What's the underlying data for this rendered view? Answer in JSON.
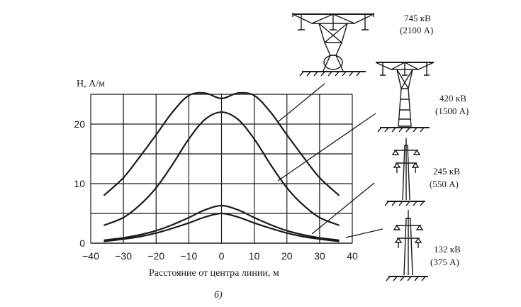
{
  "chart_data": {
    "type": "line",
    "ylabel": "H, А/м",
    "xlabel": "Расстояние от центра линии, м",
    "caption": "б)",
    "xlim": [
      -40,
      40
    ],
    "ylim": [
      0,
      25
    ],
    "grid": true,
    "x_ticks": [
      "−40",
      "−30",
      "−20",
      "−10",
      "0",
      "10",
      "20",
      "30",
      "40"
    ],
    "y_ticks": [
      "0",
      "10",
      "20"
    ],
    "series": [
      {
        "x": [
          -36,
          -30,
          -25,
          -20,
          -15,
          -10,
          -5,
          0,
          5,
          10,
          15,
          20,
          25,
          30,
          36
        ],
        "y": [
          8,
          11,
          14.5,
          18.2,
          22,
          24.8,
          25.2,
          24.3,
          25.2,
          24.8,
          22,
          18.2,
          14.5,
          11,
          8
        ]
      },
      {
        "x": [
          -36,
          -30,
          -25,
          -20,
          -15,
          -10,
          -5,
          0,
          5,
          10,
          15,
          20,
          25,
          30,
          36
        ],
        "y": [
          3,
          4.3,
          6.4,
          9.3,
          13.2,
          17.5,
          20.8,
          22,
          20.8,
          17.5,
          13.2,
          9.3,
          6.4,
          4.3,
          3
        ]
      },
      {
        "x": [
          -36,
          -30,
          -25,
          -20,
          -15,
          -10,
          -5,
          0,
          5,
          10,
          15,
          20,
          25,
          30,
          36
        ],
        "y": [
          0.5,
          0.9,
          1.4,
          2.1,
          3.1,
          4.3,
          5.6,
          6.3,
          5.6,
          4.3,
          3.1,
          2.1,
          1.4,
          0.9,
          0.5
        ]
      },
      {
        "x": [
          -36,
          -30,
          -25,
          -20,
          -15,
          -10,
          -5,
          0,
          5,
          10,
          15,
          20,
          25,
          30,
          36
        ],
        "y": [
          0.3,
          0.7,
          1.1,
          1.7,
          2.5,
          3.4,
          4.4,
          5,
          4.4,
          3.4,
          2.5,
          1.7,
          1.1,
          0.7,
          0.3
        ]
      }
    ],
    "towers": [
      {
        "voltage": "745 кВ",
        "current": "(2100 А)"
      },
      {
        "voltage": "420 кВ",
        "current": "(1500 А)"
      },
      {
        "voltage": "245 кВ",
        "current": "(550 А)"
      },
      {
        "voltage": "132 кВ",
        "current": "(375 А)"
      }
    ]
  }
}
